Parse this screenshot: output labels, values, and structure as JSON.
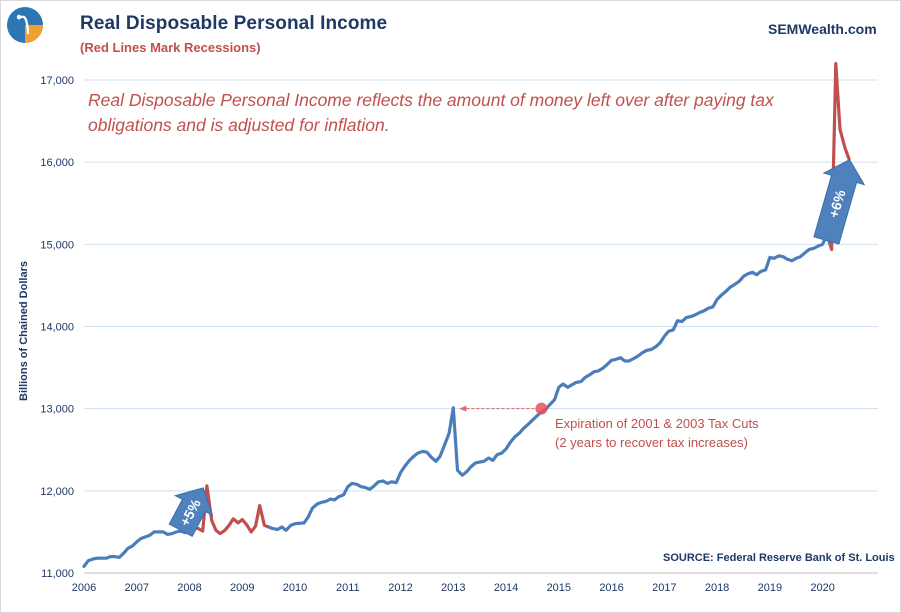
{
  "header": {
    "title": "Real Disposable  Personal  Income",
    "subtitle": "(Red Lines Mark Recessions)",
    "brand": "SEMWealth.com",
    "note": "Real Disposable Personal Income reflects the amount of money left over after paying tax obligations and is adjusted for inflation.",
    "logo_icon": "sem-wealth-logo-icon"
  },
  "footer": {
    "source": "SOURCE:  Federal Reserve Bank of St. Louis"
  },
  "colors": {
    "series": "#4a7ebb",
    "recession": "#c0504d",
    "title": "#1f3864",
    "grid": "#cfe0f0",
    "arrow": "#4f81bd"
  },
  "chart_data": {
    "type": "line",
    "ylabel": "Billions of Chained Dollars",
    "ylim": [
      11000,
      17000
    ],
    "xlim": [
      2006,
      2021
    ],
    "grid": true,
    "x_ticks": [
      "2006",
      "2007",
      "2008",
      "2009",
      "2010",
      "2011",
      "2012",
      "2013",
      "2014",
      "2015",
      "2016",
      "2017",
      "2018",
      "2019",
      "2020"
    ],
    "y_ticks": [
      "11,000",
      "12,000",
      "13,000",
      "14,000",
      "15,000",
      "16,000",
      "17,000"
    ],
    "series": [
      {
        "recession_color_segments": [
          [
            2008.0,
            2009.5
          ],
          [
            2020.17,
            2020.5
          ]
        ],
        "points": [
          [
            2006.0,
            11080
          ],
          [
            2006.08,
            11150
          ],
          [
            2006.17,
            11170
          ],
          [
            2006.25,
            11180
          ],
          [
            2006.42,
            11180
          ],
          [
            2006.5,
            11200
          ],
          [
            2006.58,
            11200
          ],
          [
            2006.67,
            11190
          ],
          [
            2006.75,
            11240
          ],
          [
            2006.83,
            11300
          ],
          [
            2006.92,
            11330
          ],
          [
            2007.0,
            11380
          ],
          [
            2007.08,
            11420
          ],
          [
            2007.17,
            11440
          ],
          [
            2007.25,
            11460
          ],
          [
            2007.33,
            11500
          ],
          [
            2007.5,
            11500
          ],
          [
            2007.58,
            11470
          ],
          [
            2007.67,
            11480
          ],
          [
            2007.75,
            11500
          ],
          [
            2007.83,
            11510
          ],
          [
            2007.92,
            11490
          ],
          [
            2008.0,
            11520
          ],
          [
            2008.08,
            11550
          ],
          [
            2008.17,
            11540
          ],
          [
            2008.25,
            11510
          ],
          [
            2008.33,
            12060
          ],
          [
            2008.42,
            11640
          ],
          [
            2008.5,
            11520
          ],
          [
            2008.58,
            11480
          ],
          [
            2008.67,
            11520
          ],
          [
            2008.75,
            11580
          ],
          [
            2008.83,
            11660
          ],
          [
            2008.92,
            11610
          ],
          [
            2009.0,
            11650
          ],
          [
            2009.08,
            11590
          ],
          [
            2009.17,
            11500
          ],
          [
            2009.25,
            11570
          ],
          [
            2009.33,
            11820
          ],
          [
            2009.42,
            11580
          ],
          [
            2009.5,
            11560
          ],
          [
            2009.58,
            11540
          ],
          [
            2009.67,
            11530
          ],
          [
            2009.75,
            11560
          ],
          [
            2009.83,
            11520
          ],
          [
            2009.92,
            11580
          ],
          [
            2010.0,
            11600
          ],
          [
            2010.17,
            11610
          ],
          [
            2010.25,
            11680
          ],
          [
            2010.33,
            11790
          ],
          [
            2010.42,
            11840
          ],
          [
            2010.5,
            11860
          ],
          [
            2010.58,
            11870
          ],
          [
            2010.67,
            11900
          ],
          [
            2010.75,
            11890
          ],
          [
            2010.83,
            11930
          ],
          [
            2010.92,
            11950
          ],
          [
            2011.0,
            12050
          ],
          [
            2011.08,
            12090
          ],
          [
            2011.17,
            12080
          ],
          [
            2011.25,
            12050
          ],
          [
            2011.33,
            12040
          ],
          [
            2011.42,
            12020
          ],
          [
            2011.5,
            12060
          ],
          [
            2011.58,
            12110
          ],
          [
            2011.67,
            12120
          ],
          [
            2011.75,
            12090
          ],
          [
            2011.83,
            12110
          ],
          [
            2011.92,
            12100
          ],
          [
            2012.0,
            12220
          ],
          [
            2012.08,
            12300
          ],
          [
            2012.17,
            12370
          ],
          [
            2012.25,
            12420
          ],
          [
            2012.33,
            12460
          ],
          [
            2012.42,
            12480
          ],
          [
            2012.5,
            12470
          ],
          [
            2012.58,
            12410
          ],
          [
            2012.67,
            12360
          ],
          [
            2012.75,
            12420
          ],
          [
            2012.83,
            12550
          ],
          [
            2012.92,
            12700
          ],
          [
            2013.0,
            13010
          ],
          [
            2013.08,
            12250
          ],
          [
            2013.17,
            12190
          ],
          [
            2013.25,
            12230
          ],
          [
            2013.33,
            12290
          ],
          [
            2013.42,
            12340
          ],
          [
            2013.5,
            12350
          ],
          [
            2013.58,
            12360
          ],
          [
            2013.67,
            12400
          ],
          [
            2013.75,
            12370
          ],
          [
            2013.83,
            12440
          ],
          [
            2013.92,
            12460
          ],
          [
            2014.0,
            12510
          ],
          [
            2014.08,
            12590
          ],
          [
            2014.17,
            12660
          ],
          [
            2014.25,
            12700
          ],
          [
            2014.33,
            12760
          ],
          [
            2014.42,
            12810
          ],
          [
            2014.5,
            12860
          ],
          [
            2014.58,
            12910
          ],
          [
            2014.67,
            12960
          ],
          [
            2014.75,
            12990
          ],
          [
            2014.83,
            13050
          ],
          [
            2014.92,
            13110
          ],
          [
            2015.0,
            13260
          ],
          [
            2015.08,
            13300
          ],
          [
            2015.17,
            13260
          ],
          [
            2015.25,
            13290
          ],
          [
            2015.33,
            13320
          ],
          [
            2015.42,
            13330
          ],
          [
            2015.5,
            13380
          ],
          [
            2015.58,
            13410
          ],
          [
            2015.67,
            13450
          ],
          [
            2015.75,
            13460
          ],
          [
            2015.83,
            13490
          ],
          [
            2015.92,
            13540
          ],
          [
            2016.0,
            13590
          ],
          [
            2016.08,
            13600
          ],
          [
            2016.17,
            13620
          ],
          [
            2016.25,
            13580
          ],
          [
            2016.33,
            13580
          ],
          [
            2016.42,
            13610
          ],
          [
            2016.5,
            13640
          ],
          [
            2016.58,
            13680
          ],
          [
            2016.67,
            13710
          ],
          [
            2016.75,
            13720
          ],
          [
            2016.83,
            13750
          ],
          [
            2016.92,
            13800
          ],
          [
            2017.0,
            13880
          ],
          [
            2017.08,
            13940
          ],
          [
            2017.17,
            13960
          ],
          [
            2017.25,
            14070
          ],
          [
            2017.33,
            14060
          ],
          [
            2017.42,
            14110
          ],
          [
            2017.5,
            14120
          ],
          [
            2017.58,
            14140
          ],
          [
            2017.67,
            14170
          ],
          [
            2017.75,
            14190
          ],
          [
            2017.83,
            14220
          ],
          [
            2017.92,
            14240
          ],
          [
            2018.0,
            14330
          ],
          [
            2018.08,
            14380
          ],
          [
            2018.17,
            14430
          ],
          [
            2018.25,
            14480
          ],
          [
            2018.33,
            14510
          ],
          [
            2018.42,
            14550
          ],
          [
            2018.5,
            14610
          ],
          [
            2018.58,
            14640
          ],
          [
            2018.67,
            14660
          ],
          [
            2018.75,
            14630
          ],
          [
            2018.83,
            14670
          ],
          [
            2018.92,
            14690
          ],
          [
            2019.0,
            14840
          ],
          [
            2019.08,
            14830
          ],
          [
            2019.17,
            14860
          ],
          [
            2019.25,
            14850
          ],
          [
            2019.33,
            14820
          ],
          [
            2019.42,
            14800
          ],
          [
            2019.5,
            14830
          ],
          [
            2019.58,
            14850
          ],
          [
            2019.67,
            14900
          ],
          [
            2019.75,
            14940
          ],
          [
            2019.83,
            14950
          ],
          [
            2019.92,
            14980
          ],
          [
            2020.0,
            15000
          ],
          [
            2020.08,
            15120
          ],
          [
            2020.17,
            14940
          ],
          [
            2020.25,
            17200
          ],
          [
            2020.33,
            16400
          ],
          [
            2020.42,
            16180
          ],
          [
            2020.5,
            16040
          ]
        ]
      }
    ],
    "annotations": {
      "tax_cut_text_line1": "Expiration of 2001 & 2003  Tax Cuts",
      "tax_cut_text_line2": "(2 years to recover tax increases)",
      "tax_cut_marker": [
        2014.67,
        13000
      ],
      "tax_cut_arrow_target": [
        2013.0,
        13000
      ],
      "arrow_2008_label": "+5%",
      "arrow_2020_label": "+6%"
    }
  }
}
